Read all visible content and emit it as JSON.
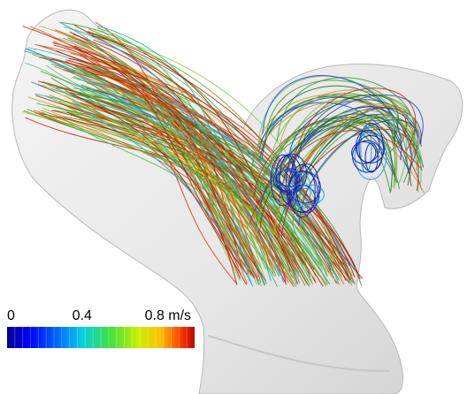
{
  "colorbar": {
    "lim": [
      0,
      1.0
    ],
    "ticks": [
      0,
      0.4,
      {
        "value": 0.8,
        "label": "0.8 m/s"
      }
    ]
  }
}
